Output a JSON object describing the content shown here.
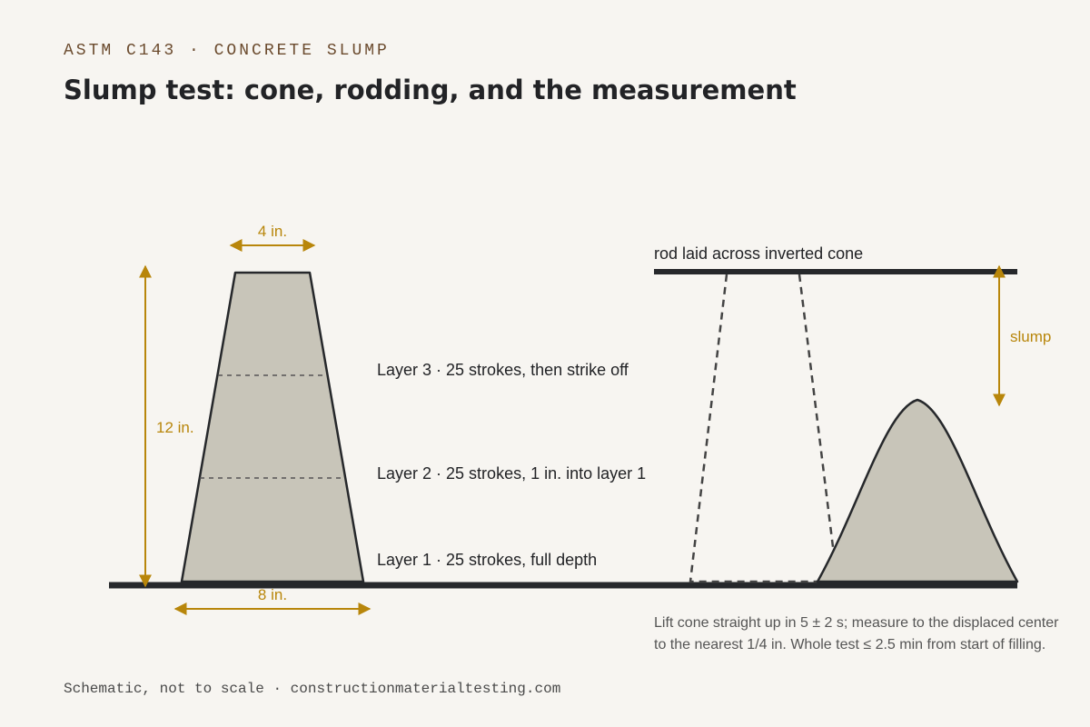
{
  "header": {
    "eyebrow": "ASTM C143 · CONCRETE SLUMP",
    "title": "Slump test: cone, rodding, and the measurement"
  },
  "cone": {
    "top_width_label": "4 in.",
    "bottom_width_label": "8 in.",
    "height_label": "12 in.",
    "layers": [
      {
        "label": "Layer 3 · 25 strokes, then strike off"
      },
      {
        "label": "Layer 2 · 25 strokes, 1 in. into layer 1"
      },
      {
        "label": "Layer 1 · 25 strokes, full depth"
      }
    ]
  },
  "measurement": {
    "rod_label": "rod laid across inverted cone",
    "slump_label": "slump",
    "note_lines": [
      "Lift cone straight up in 5 ± 2 s; measure to the displaced center",
      "to the nearest 1/4 in. Whole test ≤ 2.5 min from start of filling."
    ]
  },
  "footer": {
    "text": "Schematic, not to scale · constructionmaterialtesting.com"
  },
  "colors": {
    "background": "#f7f5f1",
    "concrete_fill": "#c8c5b9",
    "outline": "#26282b",
    "dimension_accent": "#b8860b",
    "eyebrow": "#6b4b2e"
  }
}
